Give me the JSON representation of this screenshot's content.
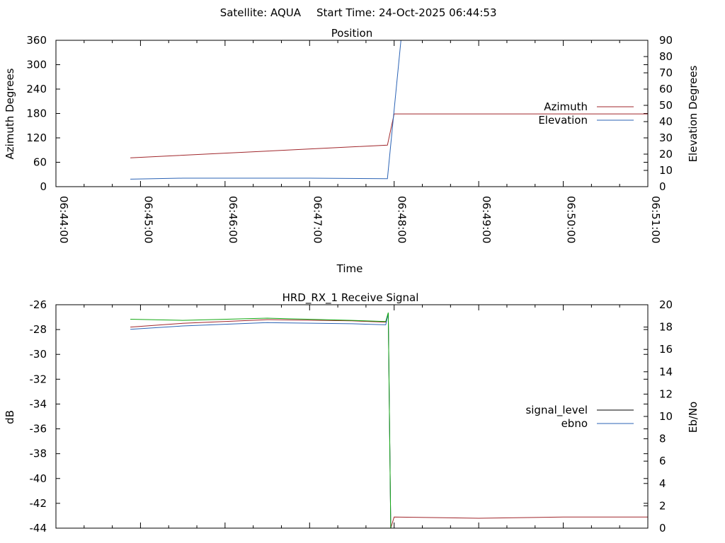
{
  "page": {
    "header_left": "Satellite: AQUA",
    "header_right": "Start Time: 24-Oct-2025 06:44:53"
  },
  "chart_data": [
    {
      "type": "line",
      "title": "Position",
      "xlabel": "Time",
      "ylabel": "Azimuth Degrees",
      "y2label": "Elevation Degrees",
      "x_ticks": [
        "06:44:00",
        "06:45:00",
        "06:46:00",
        "06:47:00",
        "06:48:00",
        "06:49:00",
        "06:50:00",
        "06:51:00"
      ],
      "xlim_min": [
        0,
        7
      ],
      "ylim": [
        0,
        360
      ],
      "y_ticks": [
        0,
        60,
        120,
        180,
        240,
        300,
        360
      ],
      "y2lim": [
        0,
        90
      ],
      "y2_ticks": [
        0,
        10,
        20,
        30,
        40,
        50,
        60,
        70,
        80,
        90
      ],
      "grid": false,
      "legend": "right",
      "series": [
        {
          "name": "Azimuth",
          "axis": "y",
          "color": "#a0262b",
          "points": [
            [
              0.88,
              71
            ],
            [
              3.92,
              102
            ],
            [
              4.0,
              179
            ],
            [
              7.0,
              179
            ]
          ]
        },
        {
          "name": "Elevation",
          "axis": "y2",
          "color": "#2b63b5",
          "points": [
            [
              0.88,
              4.6
            ],
            [
              1.5,
              5.2
            ],
            [
              3.0,
              5.2
            ],
            [
              3.92,
              4.9
            ],
            [
              4.08,
              90.0
            ]
          ]
        }
      ]
    },
    {
      "type": "line",
      "title": "HRD_RX_1 Receive Signal",
      "ylabel": "dB",
      "y2label": "Eb/No",
      "xlim_min": [
        0,
        7
      ],
      "ylim": [
        -44,
        -26
      ],
      "y_ticks": [
        -26,
        -28,
        -30,
        -32,
        -34,
        -36,
        -38,
        -40,
        -42,
        -44
      ],
      "y2lim": [
        0,
        20
      ],
      "y2_ticks": [
        0,
        2,
        4,
        6,
        8,
        10,
        12,
        14,
        16,
        18,
        20
      ],
      "grid": false,
      "legend": "right",
      "series": [
        {
          "name": "signal_level",
          "axis": "y",
          "color": "#a0262b",
          "points": [
            [
              0.88,
              -27.8
            ],
            [
              1.5,
              -27.5
            ],
            [
              2.5,
              -27.2
            ],
            [
              3.5,
              -27.3
            ],
            [
              3.9,
              -27.4
            ],
            [
              3.93,
              -26.7
            ],
            [
              3.96,
              -44.0
            ],
            [
              4.0,
              -43.1
            ],
            [
              5.0,
              -43.2
            ],
            [
              6.0,
              -43.1
            ],
            [
              7.0,
              -43.1
            ]
          ]
        },
        {
          "name": "ebno",
          "axis": "y2",
          "color": "#2b63b5",
          "points": [
            [
              0.88,
              17.8
            ],
            [
              1.5,
              18.1
            ],
            [
              2.5,
              18.4
            ],
            [
              3.5,
              18.3
            ],
            [
              3.9,
              18.2
            ],
            [
              3.93,
              19.2
            ],
            [
              3.96,
              0.0
            ]
          ]
        },
        {
          "name": "",
          "axis": "y2",
          "color": "#13a813",
          "points": [
            [
              0.88,
              18.7
            ],
            [
              1.5,
              18.6
            ],
            [
              2.5,
              18.8
            ],
            [
              3.5,
              18.6
            ],
            [
              3.9,
              18.5
            ],
            [
              3.93,
              19.3
            ],
            [
              3.96,
              0.0
            ]
          ]
        }
      ]
    }
  ]
}
